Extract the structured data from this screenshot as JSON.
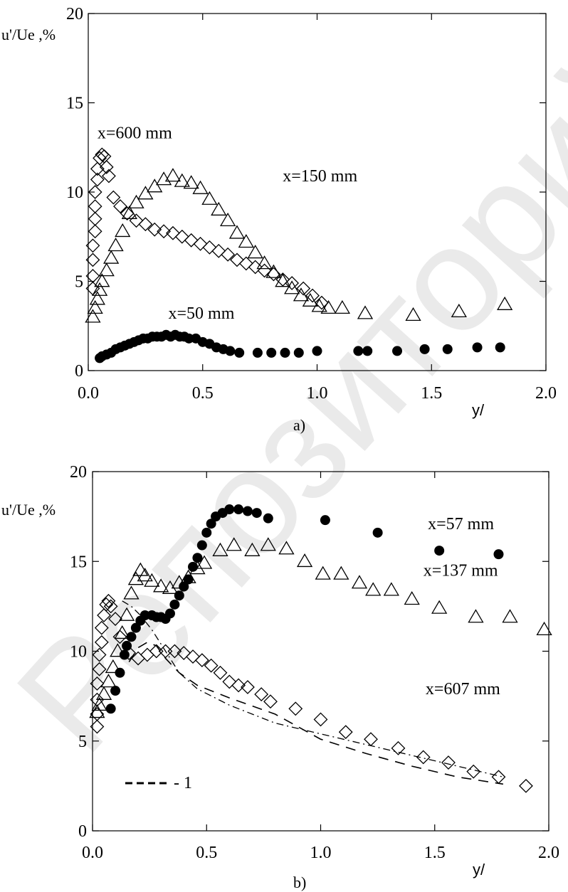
{
  "watermark": "Репозиторий КазНУ",
  "legend_label": "- 1",
  "chart_data": [
    {
      "panel": "a)",
      "type": "scatter",
      "ylabel": "u'/Ue ,%",
      "xlabel": "y/",
      "xlim": [
        0,
        2.0
      ],
      "ylim": [
        0,
        20
      ],
      "x_ticks": [
        "0.0",
        "0.5",
        "1.0",
        "1.5",
        "2.0"
      ],
      "y_ticks": [
        "0",
        "5",
        "10",
        "15",
        "20"
      ],
      "annotations": [
        {
          "text": "x=600 mm",
          "x": 0.04,
          "y": 13.0
        },
        {
          "text": "x=150 mm",
          "x": 0.85,
          "y": 10.6
        },
        {
          "text": "x=50 mm",
          "x": 0.35,
          "y": 2.9
        }
      ],
      "series": [
        {
          "marker": "diamond",
          "points": [
            [
              0.02,
              4.6
            ],
            [
              0.02,
              5.3
            ],
            [
              0.02,
              6.2
            ],
            [
              0.02,
              7.0
            ],
            [
              0.03,
              7.8
            ],
            [
              0.03,
              8.5
            ],
            [
              0.03,
              9.2
            ],
            [
              0.03,
              10.0
            ],
            [
              0.04,
              10.7
            ],
            [
              0.04,
              11.3
            ],
            [
              0.05,
              11.9
            ],
            [
              0.06,
              12.1
            ],
            [
              0.07,
              12.0
            ],
            [
              0.08,
              11.4
            ],
            [
              0.09,
              10.9
            ],
            [
              0.11,
              9.7
            ],
            [
              0.14,
              9.2
            ],
            [
              0.17,
              8.8
            ],
            [
              0.21,
              8.4
            ],
            [
              0.25,
              8.2
            ],
            [
              0.29,
              7.9
            ],
            [
              0.33,
              7.8
            ],
            [
              0.37,
              7.7
            ],
            [
              0.41,
              7.5
            ],
            [
              0.45,
              7.3
            ],
            [
              0.49,
              7.1
            ],
            [
              0.53,
              6.9
            ],
            [
              0.57,
              6.7
            ],
            [
              0.61,
              6.5
            ],
            [
              0.65,
              6.2
            ],
            [
              0.69,
              6.0
            ],
            [
              0.73,
              5.8
            ],
            [
              0.77,
              5.6
            ],
            [
              0.81,
              5.4
            ],
            [
              0.85,
              5.1
            ],
            [
              0.89,
              4.9
            ],
            [
              0.94,
              4.6
            ],
            [
              0.98,
              4.2
            ],
            [
              1.02,
              3.8
            ]
          ]
        },
        {
          "marker": "triangle",
          "points": [
            [
              0.02,
              3.0
            ],
            [
              0.03,
              3.5
            ],
            [
              0.04,
              4.0
            ],
            [
              0.05,
              4.5
            ],
            [
              0.06,
              5.0
            ],
            [
              0.08,
              5.6
            ],
            [
              0.1,
              6.3
            ],
            [
              0.12,
              7.0
            ],
            [
              0.15,
              7.8
            ],
            [
              0.18,
              8.8
            ],
            [
              0.21,
              9.4
            ],
            [
              0.25,
              9.9
            ],
            [
              0.29,
              10.3
            ],
            [
              0.33,
              10.7
            ],
            [
              0.37,
              10.9
            ],
            [
              0.41,
              10.6
            ],
            [
              0.45,
              10.5
            ],
            [
              0.49,
              10.2
            ],
            [
              0.53,
              9.6
            ],
            [
              0.57,
              9.0
            ],
            [
              0.61,
              8.4
            ],
            [
              0.65,
              7.7
            ],
            [
              0.69,
              7.2
            ],
            [
              0.73,
              6.6
            ],
            [
              0.77,
              6.0
            ],
            [
              0.81,
              5.5
            ],
            [
              0.85,
              5.0
            ],
            [
              0.89,
              4.6
            ],
            [
              0.93,
              4.2
            ],
            [
              0.97,
              3.9
            ],
            [
              1.01,
              3.6
            ],
            [
              1.05,
              3.5
            ],
            [
              1.11,
              3.5
            ],
            [
              1.21,
              3.2
            ],
            [
              1.42,
              3.1
            ],
            [
              1.62,
              3.3
            ],
            [
              1.82,
              3.7
            ]
          ]
        },
        {
          "marker": "filled-circle",
          "points": [
            [
              0.05,
              0.7
            ],
            [
              0.06,
              0.8
            ],
            [
              0.08,
              0.9
            ],
            [
              0.1,
              1.0
            ],
            [
              0.12,
              1.2
            ],
            [
              0.14,
              1.3
            ],
            [
              0.16,
              1.4
            ],
            [
              0.18,
              1.5
            ],
            [
              0.2,
              1.6
            ],
            [
              0.22,
              1.7
            ],
            [
              0.24,
              1.8
            ],
            [
              0.26,
              1.8
            ],
            [
              0.28,
              1.9
            ],
            [
              0.3,
              1.9
            ],
            [
              0.32,
              1.9
            ],
            [
              0.34,
              2.0
            ],
            [
              0.36,
              1.9
            ],
            [
              0.38,
              2.0
            ],
            [
              0.4,
              1.9
            ],
            [
              0.42,
              1.9
            ],
            [
              0.44,
              1.8
            ],
            [
              0.47,
              1.8
            ],
            [
              0.5,
              1.6
            ],
            [
              0.53,
              1.5
            ],
            [
              0.56,
              1.3
            ],
            [
              0.59,
              1.2
            ],
            [
              0.62,
              1.1
            ],
            [
              0.66,
              1.0
            ],
            [
              0.74,
              1.0
            ],
            [
              0.8,
              1.0
            ],
            [
              0.86,
              1.0
            ],
            [
              0.92,
              1.0
            ],
            [
              1.0,
              1.1
            ],
            [
              1.18,
              1.1
            ],
            [
              1.22,
              1.1
            ],
            [
              1.35,
              1.1
            ],
            [
              1.47,
              1.2
            ],
            [
              1.57,
              1.2
            ],
            [
              1.7,
              1.3
            ],
            [
              1.8,
              1.3
            ]
          ]
        }
      ]
    },
    {
      "panel": "b)",
      "type": "scatter",
      "ylabel": "u'/Ue ,%",
      "xlabel": "y/",
      "xlim": [
        0,
        2.0
      ],
      "ylim": [
        0,
        20
      ],
      "x_ticks": [
        "0.0",
        "0.5",
        "1.0",
        "1.5",
        "2.0"
      ],
      "y_ticks": [
        "0",
        "5",
        "10",
        "15",
        "20"
      ],
      "annotations": [
        {
          "text": "x=57 mm",
          "x": 1.47,
          "y": 16.8
        },
        {
          "text": "x=137 mm",
          "x": 1.45,
          "y": 14.2
        },
        {
          "text": "x=607 mm",
          "x": 1.46,
          "y": 7.6
        }
      ],
      "series": [
        {
          "marker": "diamond",
          "points": [
            [
              0.02,
              5.8
            ],
            [
              0.02,
              6.5
            ],
            [
              0.02,
              7.3
            ],
            [
              0.02,
              8.2
            ],
            [
              0.03,
              9.0
            ],
            [
              0.03,
              9.8
            ],
            [
              0.04,
              10.5
            ],
            [
              0.04,
              11.3
            ],
            [
              0.05,
              12.0
            ],
            [
              0.06,
              12.6
            ],
            [
              0.07,
              12.8
            ],
            [
              0.08,
              12.5
            ],
            [
              0.1,
              11.8
            ],
            [
              0.12,
              10.8
            ],
            [
              0.16,
              9.9
            ],
            [
              0.2,
              9.6
            ],
            [
              0.24,
              9.8
            ],
            [
              0.28,
              10.0
            ],
            [
              0.32,
              10.0
            ],
            [
              0.36,
              10.0
            ],
            [
              0.4,
              9.9
            ],
            [
              0.44,
              9.7
            ],
            [
              0.48,
              9.5
            ],
            [
              0.52,
              9.2
            ],
            [
              0.56,
              8.8
            ],
            [
              0.6,
              8.3
            ],
            [
              0.64,
              8.1
            ],
            [
              0.68,
              8.0
            ],
            [
              0.74,
              7.6
            ],
            [
              0.78,
              7.2
            ],
            [
              0.89,
              6.8
            ],
            [
              1.0,
              6.2
            ],
            [
              1.11,
              5.5
            ],
            [
              1.22,
              5.1
            ],
            [
              1.34,
              4.6
            ],
            [
              1.45,
              4.1
            ],
            [
              1.56,
              3.8
            ],
            [
              1.67,
              3.3
            ],
            [
              1.78,
              3.0
            ],
            [
              1.9,
              2.5
            ]
          ]
        },
        {
          "marker": "triangle",
          "points": [
            [
              0.02,
              6.6
            ],
            [
              0.03,
              7.0
            ],
            [
              0.05,
              7.6
            ],
            [
              0.07,
              8.3
            ],
            [
              0.09,
              9.1
            ],
            [
              0.11,
              10.0
            ],
            [
              0.13,
              11.0
            ],
            [
              0.15,
              12.0
            ],
            [
              0.17,
              13.2
            ],
            [
              0.19,
              14.0
            ],
            [
              0.21,
              14.5
            ],
            [
              0.23,
              14.2
            ],
            [
              0.26,
              13.9
            ],
            [
              0.3,
              13.6
            ],
            [
              0.34,
              13.5
            ],
            [
              0.38,
              13.8
            ],
            [
              0.42,
              14.1
            ],
            [
              0.46,
              14.6
            ],
            [
              0.49,
              14.9
            ],
            [
              0.56,
              15.6
            ],
            [
              0.62,
              15.9
            ],
            [
              0.7,
              15.6
            ],
            [
              0.77,
              15.9
            ],
            [
              0.85,
              15.7
            ],
            [
              0.93,
              15.0
            ],
            [
              1.01,
              14.3
            ],
            [
              1.09,
              14.3
            ],
            [
              1.17,
              13.8
            ],
            [
              1.23,
              13.4
            ],
            [
              1.31,
              13.4
            ],
            [
              1.4,
              12.9
            ],
            [
              1.52,
              12.4
            ],
            [
              1.68,
              11.9
            ],
            [
              1.83,
              11.9
            ],
            [
              1.98,
              11.2
            ]
          ]
        },
        {
          "marker": "filled-circle",
          "points": [
            [
              0.08,
              6.8
            ],
            [
              0.1,
              7.8
            ],
            [
              0.12,
              8.8
            ],
            [
              0.14,
              9.8
            ],
            [
              0.15,
              10.3
            ],
            [
              0.17,
              10.8
            ],
            [
              0.19,
              11.3
            ],
            [
              0.21,
              11.7
            ],
            [
              0.23,
              12.0
            ],
            [
              0.26,
              12.0
            ],
            [
              0.28,
              11.9
            ],
            [
              0.3,
              11.9
            ],
            [
              0.32,
              11.8
            ],
            [
              0.34,
              12.1
            ],
            [
              0.36,
              12.6
            ],
            [
              0.38,
              13.1
            ],
            [
              0.4,
              13.6
            ],
            [
              0.42,
              14.0
            ],
            [
              0.44,
              14.7
            ],
            [
              0.46,
              15.2
            ],
            [
              0.48,
              15.9
            ],
            [
              0.5,
              16.6
            ],
            [
              0.52,
              17.1
            ],
            [
              0.54,
              17.5
            ],
            [
              0.57,
              17.7
            ],
            [
              0.6,
              17.9
            ],
            [
              0.64,
              17.9
            ],
            [
              0.68,
              17.8
            ],
            [
              0.72,
              17.7
            ],
            [
              0.77,
              17.4
            ],
            [
              1.02,
              17.3
            ],
            [
              1.25,
              16.6
            ],
            [
              1.52,
              15.6
            ],
            [
              1.78,
              15.4
            ]
          ]
        }
      ],
      "lines": [
        {
          "name": "1",
          "style": "dashed",
          "points": [
            [
              0.16,
              9.4
            ],
            [
              0.2,
              10.2
            ],
            [
              0.24,
              10.5
            ],
            [
              0.28,
              10.3
            ],
            [
              0.32,
              9.6
            ],
            [
              0.38,
              8.8
            ],
            [
              0.46,
              8.1
            ],
            [
              0.6,
              7.4
            ],
            [
              0.8,
              6.5
            ],
            [
              1.0,
              5.1
            ],
            [
              1.2,
              4.3
            ],
            [
              1.4,
              3.6
            ],
            [
              1.6,
              3.0
            ],
            [
              1.8,
              2.6
            ]
          ]
        },
        {
          "style": "dash-dot",
          "points": [
            [
              0.13,
              12.8
            ],
            [
              0.17,
              12.5
            ],
            [
              0.21,
              12.0
            ],
            [
              0.26,
              11.2
            ],
            [
              0.32,
              10.0
            ],
            [
              0.38,
              8.8
            ],
            [
              0.46,
              7.9
            ],
            [
              0.6,
              7.0
            ],
            [
              0.8,
              6.0
            ],
            [
              1.0,
              5.4
            ],
            [
              1.2,
              4.8
            ],
            [
              1.4,
              4.2
            ],
            [
              1.6,
              3.6
            ],
            [
              1.8,
              3.0
            ]
          ]
        }
      ]
    }
  ]
}
